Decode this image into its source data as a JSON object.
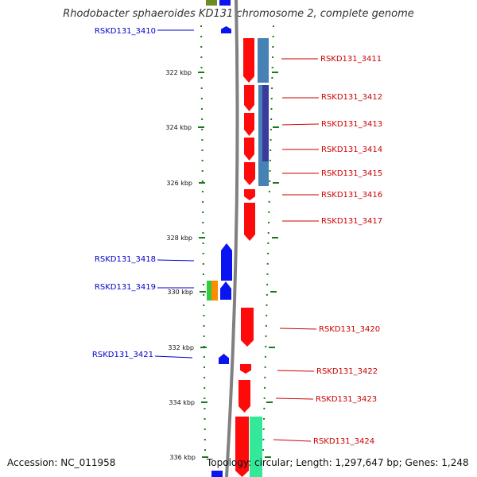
{
  "title": "Rhodobacter sphaeroides KD131 chromosome 2, complete genome",
  "footer": {
    "accession": "Accession: NC_011958",
    "topology": "Topology: circular; Length: 1,297,647 bp; Genes: 1,248"
  },
  "colors": {
    "reverse_gene": "#0a14f0",
    "forward_gene": "#ff0a0a",
    "forward_label": "#cc0000",
    "reverse_label": "#0000cc",
    "backbone": "#808080",
    "tick": "#1a7a1a",
    "steelblue_block": "#4682b4",
    "navy_block": "#3b3b9e",
    "green_block": "#34e89a"
  },
  "ticks": {
    "labels": [
      "322 kbp",
      "324 kbp",
      "326 kbp",
      "328 kbp",
      "330 kbp",
      "332 kbp",
      "334 kbp",
      "336 kbp"
    ]
  },
  "genes": {
    "reverse": [
      "RSKD131_3410",
      "RSKD131_3418",
      "RSKD131_3419",
      "RSKD131_3421"
    ],
    "forward": [
      "RSKD131_3411",
      "RSKD131_3412",
      "RSKD131_3413",
      "RSKD131_3414",
      "RSKD131_3415",
      "RSKD131_3416",
      "RSKD131_3417",
      "RSKD131_3420",
      "RSKD131_3422",
      "RSKD131_3423",
      "RSKD131_3424"
    ]
  }
}
